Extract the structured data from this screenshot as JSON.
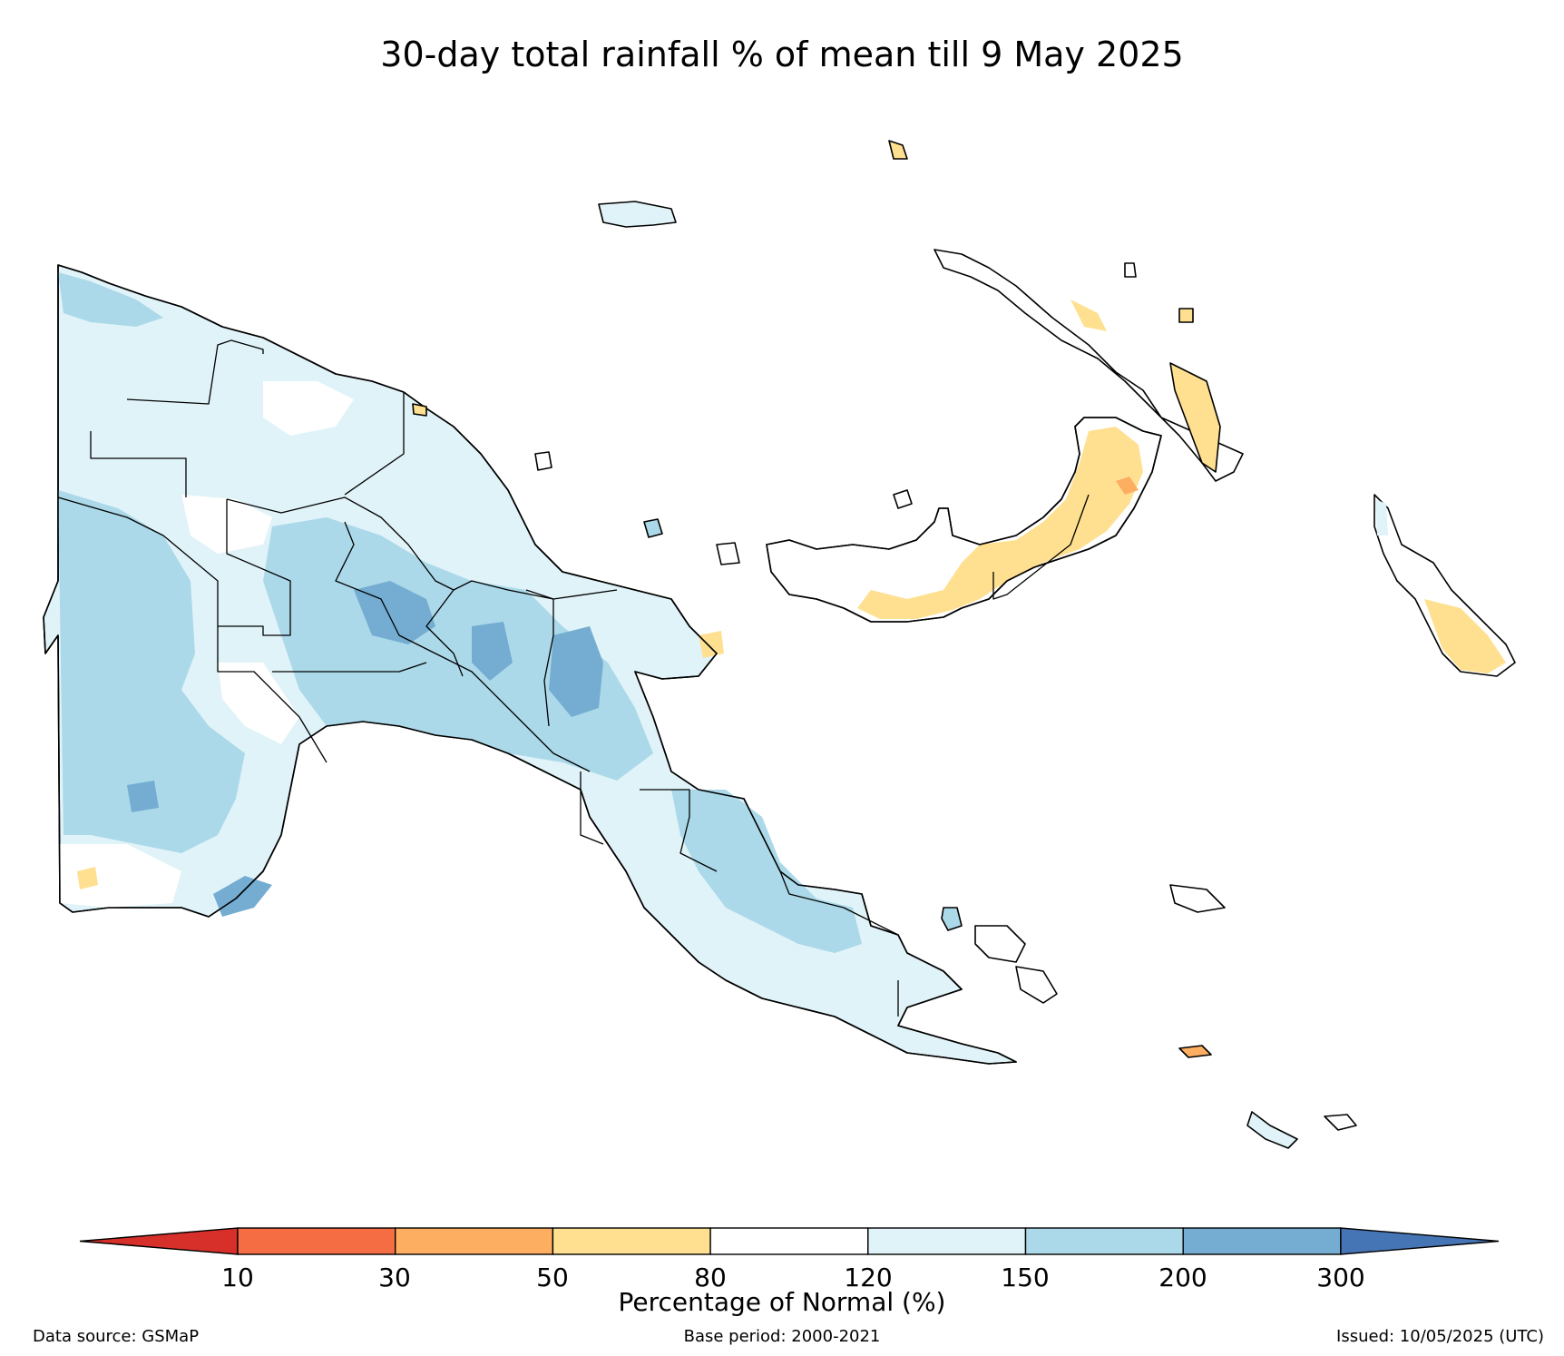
{
  "title": "30-day total rainfall % of mean till 9 May 2025",
  "legend": {
    "label": "Percentage of Normal (%)",
    "ticks": [
      "10",
      "30",
      "50",
      "80",
      "120",
      "150",
      "200",
      "300"
    ],
    "bins": [
      {
        "range": "<10",
        "color": "#d7302a"
      },
      {
        "range": "10-30",
        "color": "#f46d43"
      },
      {
        "range": "30-50",
        "color": "#fdae61"
      },
      {
        "range": "50-80",
        "color": "#fee090"
      },
      {
        "range": "80-120",
        "color": "#ffffff"
      },
      {
        "range": "120-150",
        "color": "#e0f3f8"
      },
      {
        "range": "150-200",
        "color": "#abd9e9"
      },
      {
        "range": "200-300",
        "color": "#74add1"
      },
      {
        "range": ">300",
        "color": "#4575b4"
      }
    ]
  },
  "footer": {
    "source": "Data source: GSMaP",
    "base_period": "Base period: 2000-2021",
    "issued": "Issued: 10/05/2025 (UTC)"
  }
}
